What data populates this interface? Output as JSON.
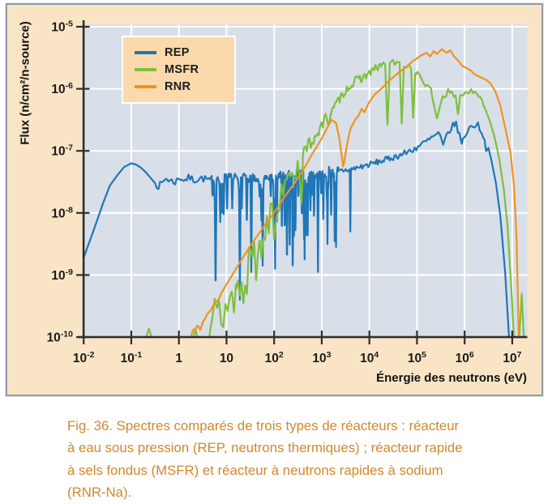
{
  "caption": {
    "lines": [
      "Fig. 36. Spectres comparés de trois types de réacteurs : réacteur",
      "à eau sous pression (REP, neutrons thermiques) ; réacteur rapide",
      "à sels fondus (MSFR) et réacteur à neutrons rapides à sodium",
      "(RNR-Na)."
    ],
    "color": "#D2872B"
  },
  "colors": {
    "figure_background": "#F9E5C6",
    "plot_background": "#D9DFE8",
    "grid": "#FFFFFF",
    "axis": "#2E2E2E",
    "legend_background": "#FBD9AB",
    "tick_text": "#1B1B1B"
  },
  "chart_data": {
    "type": "line",
    "xlabel": "Énergie des neutrons (eV)",
    "ylabel": "Flux (n/cm²/n-source)",
    "x_scale": "log",
    "y_scale": "log",
    "xlim_log": [
      -2,
      7.3
    ],
    "ylim_log": [
      -10,
      -5
    ],
    "x_ticks": [
      {
        "exp": -2
      },
      {
        "exp": -1
      },
      {
        "text": "1"
      },
      {
        "text": "10"
      },
      {
        "exp": 2
      },
      {
        "exp": 3
      },
      {
        "exp": 4
      },
      {
        "exp": 5
      },
      {
        "exp": 6
      },
      {
        "exp": 7
      }
    ],
    "y_ticks": [
      {
        "exp": -5
      },
      {
        "exp": -6
      },
      {
        "exp": -7
      },
      {
        "exp": -8
      },
      {
        "exp": -9
      },
      {
        "exp": -10
      }
    ],
    "grid": "white lines at each decade",
    "legend": {
      "position": "upper-left",
      "items": [
        "REP",
        "MSFR",
        "RNR"
      ]
    },
    "series": [
      {
        "name": "REP",
        "color": "#1F76B8",
        "seed": 7,
        "segments": [
          {
            "anchors": [
              [
                -2,
                -8.72
              ],
              [
                -1.8,
                -8.3
              ],
              [
                -1.6,
                -7.86
              ],
              [
                -1.45,
                -7.56
              ],
              [
                -1.3,
                -7.4
              ],
              [
                -1.15,
                -7.26
              ],
              [
                -1.0,
                -7.2
              ],
              [
                -0.9,
                -7.22
              ],
              [
                -0.8,
                -7.27
              ],
              [
                -0.7,
                -7.34
              ],
              [
                -0.6,
                -7.43
              ],
              [
                -0.5,
                -7.52
              ],
              [
                -0.42,
                -7.57
              ],
              [
                -0.35,
                -7.52
              ],
              [
                -0.28,
                -7.44
              ],
              [
                -0.18,
                -7.48
              ],
              [
                -0.08,
                -7.5
              ],
              [
                0.02,
                -7.43
              ],
              [
                0.12,
                -7.47
              ],
              [
                0.22,
                -7.43
              ],
              [
                0.32,
                -7.47
              ],
              [
                0.45,
                -7.44
              ],
              [
                0.6,
                -7.46
              ],
              [
                1.0,
                -7.44
              ],
              [
                1.5,
                -7.45
              ],
              [
                2.0,
                -7.43
              ],
              [
                2.5,
                -7.4
              ],
              [
                3.0,
                -7.36
              ],
              [
                3.3,
                -7.33
              ],
              [
                3.6,
                -7.3
              ],
              [
                4.0,
                -7.22
              ],
              [
                4.4,
                -7.13
              ],
              [
                4.75,
                -7.04
              ],
              [
                5.1,
                -6.9
              ],
              [
                5.3,
                -6.8
              ],
              [
                5.45,
                -6.72
              ],
              [
                5.5,
                -6.8
              ],
              [
                5.55,
                -6.95
              ],
              [
                5.62,
                -6.75
              ],
              [
                5.7,
                -6.65
              ],
              [
                5.81,
                -6.55
              ],
              [
                5.88,
                -6.7
              ],
              [
                5.94,
                -6.9
              ],
              [
                6.0,
                -6.75
              ],
              [
                6.08,
                -6.65
              ],
              [
                6.16,
                -6.6
              ],
              [
                6.23,
                -6.57
              ],
              [
                6.3,
                -6.6
              ],
              [
                6.36,
                -6.68
              ],
              [
                6.42,
                -6.85
              ],
              [
                6.46,
                -7.0
              ],
              [
                6.5,
                -6.95
              ],
              [
                6.57,
                -7.18
              ],
              [
                6.66,
                -7.53
              ],
              [
                6.75,
                -8.05
              ],
              [
                6.85,
                -8.95
              ],
              [
                6.94,
                -10.1
              ]
            ],
            "noise": [
              {
                "from": -0.5,
                "to": 0.65,
                "amp": 0.06,
                "step": 0.035
              },
              {
                "from": 0.65,
                "to": 1.95,
                "amp": 0.08,
                "step": 0.018,
                "spike": 0.2,
                "spikeMin": 0.2,
                "spikeMax": 0.75
              },
              {
                "from": 1.95,
                "to": 3.35,
                "amp": 0.1,
                "step": 0.015,
                "spike": 0.38,
                "spikeMin": 0.25,
                "spikeMax": 1.2
              },
              {
                "from": 3.35,
                "to": 4.7,
                "amp": 0.05,
                "step": 0.025
              },
              {
                "from": 4.7,
                "to": 6.45,
                "amp": 0.06,
                "step": 0.035
              }
            ],
            "dips": [
              [
                0.77,
                -9.25,
                0.022
              ],
              [
                1.28,
                -9.4,
                0.02
              ],
              [
                1.52,
                -8.95,
                0.018
              ],
              [
                1.76,
                -8.85,
                0.018
              ],
              [
                2.02,
                -8.9,
                0.016
              ],
              [
                2.27,
                -8.85,
                0.016
              ],
              [
                2.39,
                -9.05,
                0.016
              ],
              [
                2.64,
                -8.75,
                0.015
              ],
              [
                2.92,
                -8.95,
                0.015
              ],
              [
                3.12,
                -8.5,
                0.014
              ],
              [
                3.3,
                -8.55,
                0.014
              ],
              [
                3.6,
                -8.3,
                0.013
              ]
            ]
          }
        ]
      },
      {
        "name": "MSFR",
        "color": "#7FBF3F",
        "seed": 13,
        "segments": [
          {
            "anchors": [
              [
                -0.72,
                -10.1
              ],
              [
                -0.63,
                -9.86
              ],
              [
                -0.54,
                -10.1
              ]
            ],
            "noise": [],
            "dips": []
          },
          {
            "anchors": [
              [
                0.27,
                -10.1
              ],
              [
                0.35,
                -9.92
              ],
              [
                0.5,
                -9.85
              ],
              [
                0.7,
                -9.72
              ],
              [
                0.9,
                -9.6
              ],
              [
                1.1,
                -9.38
              ],
              [
                1.3,
                -9.08
              ],
              [
                1.5,
                -8.72
              ],
              [
                1.7,
                -8.38
              ],
              [
                1.9,
                -8.1
              ],
              [
                2.1,
                -7.78
              ],
              [
                2.3,
                -7.48
              ],
              [
                2.5,
                -7.22
              ],
              [
                2.7,
                -6.95
              ],
              [
                2.9,
                -6.7
              ],
              [
                3.0,
                -6.6
              ],
              [
                3.15,
                -6.45
              ],
              [
                3.3,
                -6.25
              ],
              [
                3.5,
                -6.02
              ],
              [
                3.7,
                -5.88
              ],
              [
                3.9,
                -5.8
              ],
              [
                4.05,
                -5.72
              ],
              [
                4.2,
                -5.64
              ],
              [
                4.35,
                -5.59
              ],
              [
                4.5,
                -5.58
              ],
              [
                4.65,
                -5.6
              ],
              [
                4.8,
                -5.63
              ],
              [
                4.95,
                -5.7
              ],
              [
                5.1,
                -5.85
              ],
              [
                5.25,
                -6.0
              ],
              [
                5.35,
                -6.08
              ],
              [
                5.55,
                -6.12
              ],
              [
                5.65,
                -6.05
              ],
              [
                5.78,
                -6.1
              ],
              [
                5.95,
                -6.08
              ],
              [
                6.1,
                -6.04
              ],
              [
                6.2,
                -6.08
              ],
              [
                6.3,
                -6.12
              ],
              [
                6.42,
                -6.3
              ],
              [
                6.52,
                -6.5
              ],
              [
                6.62,
                -6.75
              ],
              [
                6.72,
                -7.1
              ],
              [
                6.82,
                -7.6
              ],
              [
                6.9,
                -8.2
              ],
              [
                6.98,
                -9.2
              ],
              [
                7.04,
                -10.1
              ]
            ],
            "noise": [
              {
                "from": 0.3,
                "to": 1.2,
                "amp": 0.42,
                "step": 0.045
              },
              {
                "from": 1.2,
                "to": 2.6,
                "amp": 0.27,
                "step": 0.038,
                "spike": 0.15,
                "spikeMin": 0.3,
                "spikeMax": 0.85
              },
              {
                "from": 2.6,
                "to": 3.2,
                "amp": 0.13,
                "step": 0.028
              },
              {
                "from": 3.2,
                "to": 4.25,
                "amp": 0.07,
                "step": 0.025
              },
              {
                "from": 4.25,
                "to": 6.4,
                "amp": 0.05,
                "step": 0.04
              }
            ],
            "dips": [
              [
                4.38,
                -6.62,
                0.05
              ],
              [
                4.68,
                -6.6,
                0.045
              ],
              [
                4.92,
                -6.5,
                0.045
              ],
              [
                5.42,
                -6.48,
                0.12
              ],
              [
                5.86,
                -6.42,
                0.05
              ]
            ]
          },
          {
            "anchors": [
              [
                7.14,
                -10.1
              ],
              [
                7.2,
                -9.3
              ],
              [
                7.25,
                -10.1
              ]
            ],
            "noise": [],
            "dips": []
          }
        ]
      },
      {
        "name": "RNR",
        "color": "#F29220",
        "seed": 3,
        "segments": [
          {
            "anchors": [
              [
                0.2,
                -10.1
              ],
              [
                0.3,
                -9.9
              ],
              [
                0.38,
                -9.8
              ],
              [
                0.45,
                -9.85
              ],
              [
                0.52,
                -9.75
              ],
              [
                0.6,
                -9.62
              ],
              [
                0.7,
                -9.5
              ],
              [
                0.8,
                -9.4
              ],
              [
                0.9,
                -9.28
              ],
              [
                1.0,
                -9.15
              ],
              [
                1.2,
                -8.9
              ],
              [
                1.4,
                -8.65
              ],
              [
                1.6,
                -8.42
              ],
              [
                1.8,
                -8.2
              ],
              [
                2.0,
                -8.0
              ],
              [
                2.2,
                -7.76
              ],
              [
                2.4,
                -7.55
              ],
              [
                2.6,
                -7.32
              ],
              [
                2.8,
                -7.05
              ],
              [
                3.0,
                -6.8
              ],
              [
                3.1,
                -6.65
              ],
              [
                3.2,
                -6.5
              ],
              [
                3.3,
                -6.55
              ],
              [
                3.37,
                -6.8
              ],
              [
                3.45,
                -7.26
              ],
              [
                3.53,
                -6.9
              ],
              [
                3.6,
                -6.65
              ],
              [
                3.7,
                -6.5
              ],
              [
                3.78,
                -6.42
              ],
              [
                3.84,
                -6.32
              ],
              [
                3.9,
                -6.38
              ],
              [
                3.97,
                -6.25
              ],
              [
                4.1,
                -6.1
              ],
              [
                4.25,
                -6.0
              ],
              [
                4.4,
                -5.88
              ],
              [
                4.6,
                -5.75
              ],
              [
                4.75,
                -5.66
              ],
              [
                4.92,
                -5.55
              ],
              [
                5.09,
                -5.46
              ],
              [
                5.2,
                -5.42
              ],
              [
                5.28,
                -5.48
              ],
              [
                5.35,
                -5.39
              ],
              [
                5.42,
                -5.44
              ],
              [
                5.52,
                -5.36
              ],
              [
                5.62,
                -5.42
              ],
              [
                5.7,
                -5.38
              ],
              [
                5.78,
                -5.48
              ],
              [
                5.88,
                -5.56
              ],
              [
                5.95,
                -5.63
              ],
              [
                6.05,
                -5.67
              ],
              [
                6.12,
                -5.7
              ],
              [
                6.2,
                -5.76
              ],
              [
                6.29,
                -5.8
              ],
              [
                6.38,
                -5.83
              ],
              [
                6.46,
                -5.86
              ],
              [
                6.55,
                -5.92
              ],
              [
                6.65,
                -6.05
              ],
              [
                6.75,
                -6.27
              ],
              [
                6.85,
                -6.62
              ],
              [
                6.97,
                -7.05
              ],
              [
                7.04,
                -7.6
              ],
              [
                7.09,
                -8.4
              ],
              [
                7.14,
                -10.1
              ]
            ],
            "noise": [
              {
                "from": 0.25,
                "to": 0.9,
                "amp": 0.04,
                "step": 0.05
              }
            ],
            "dips": []
          }
        ]
      }
    ]
  }
}
